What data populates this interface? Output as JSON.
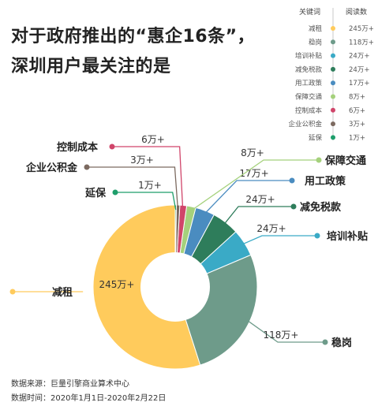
{
  "title_lines": [
    "对于政府推出的“惠企16条”，",
    "深圳用户最关注的是"
  ],
  "legend": {
    "header_keyword": "关键词",
    "header_count": "阅读数"
  },
  "source": {
    "line1": "数据来源：巨量引擎商业算术中心",
    "line2": "数据时间：2020年1月1日-2020年2月22日"
  },
  "chart_data": {
    "type": "pie",
    "donut": true,
    "title": "对于政府推出的“惠企16条”，深圳用户最关注的是",
    "legend_placement": "top-right",
    "slices": [
      {
        "name": "减租",
        "value": 245,
        "label": "245万+",
        "color": "#FFCB5C"
      },
      {
        "name": "稳岗",
        "value": 118,
        "label": "118万+",
        "color": "#6E9B8A"
      },
      {
        "name": "培训补贴",
        "value": 24,
        "label": "24万+",
        "color": "#3AAAC6"
      },
      {
        "name": "减免税款",
        "value": 24,
        "label": "24万+",
        "color": "#2E7D5B"
      },
      {
        "name": "用工政策",
        "value": 17,
        "label": "17万+",
        "color": "#4A8CC0"
      },
      {
        "name": "保障交通",
        "value": 8,
        "label": "8万+",
        "color": "#A5D17C"
      },
      {
        "name": "控制成本",
        "value": 6,
        "label": "6万+",
        "color": "#D0456A"
      },
      {
        "name": "企业公积金",
        "value": 3,
        "label": "3万+",
        "color": "#7C6A60"
      },
      {
        "name": "延保",
        "value": 1,
        "label": "1万+",
        "color": "#1E9E6B"
      }
    ]
  }
}
